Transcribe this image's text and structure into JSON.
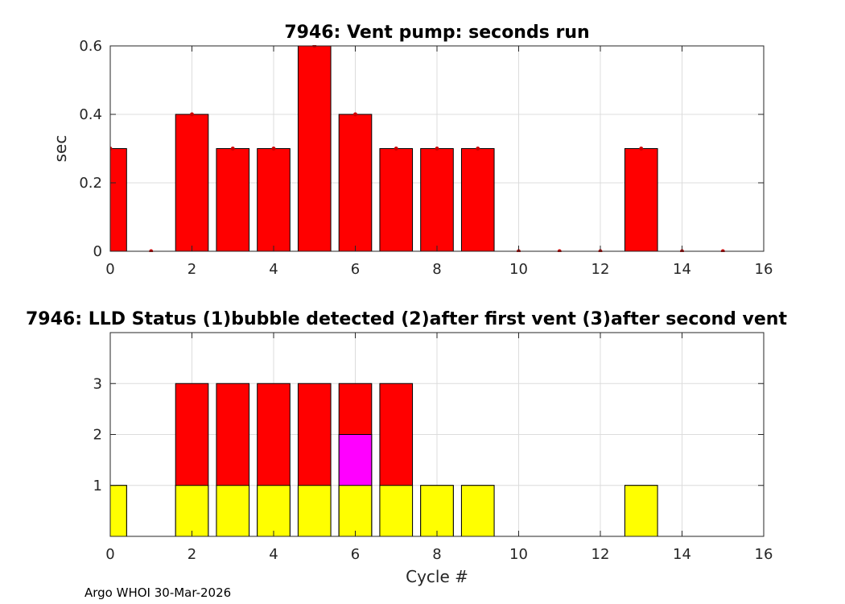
{
  "footer": "Argo WHOI 30-Mar-2026",
  "chart_data": [
    {
      "type": "bar",
      "title": "7946: Vent pump: seconds run",
      "xlabel": "",
      "ylabel": "sec",
      "xlim": [
        0,
        16
      ],
      "ylim": [
        0,
        0.6
      ],
      "xticks": [
        0,
        2,
        4,
        6,
        8,
        10,
        12,
        14,
        16
      ],
      "yticks": [
        0,
        0.2,
        0.4,
        0.6
      ],
      "ytick_labels": [
        "0",
        "0.2",
        "0.4",
        "0.6"
      ],
      "grid": true,
      "bar_color": "#ff0000",
      "marker_color": "#cc0000",
      "x": [
        0,
        1,
        2,
        3,
        4,
        5,
        6,
        7,
        8,
        9,
        10,
        11,
        12,
        13,
        14,
        15
      ],
      "values": [
        0.3,
        0,
        0.4,
        0.3,
        0.3,
        0.6,
        0.4,
        0.3,
        0.3,
        0.3,
        0,
        0,
        0,
        0.3,
        0,
        0
      ]
    },
    {
      "type": "bar",
      "title": "7946: LLD Status   (1)bubble detected   (2)after first vent  (3)after second vent",
      "xlabel": "Cycle #",
      "ylabel": "",
      "xlim": [
        0,
        16
      ],
      "ylim": [
        0,
        4
      ],
      "xticks": [
        0,
        2,
        4,
        6,
        8,
        10,
        12,
        14,
        16
      ],
      "yticks": [
        1,
        2,
        3
      ],
      "grid": true,
      "x": [
        0,
        1,
        2,
        3,
        4,
        5,
        6,
        7,
        8,
        9,
        10,
        11,
        12,
        13,
        14,
        15
      ],
      "values": [
        1,
        0,
        3,
        3,
        3,
        3,
        3,
        3,
        1,
        1,
        0,
        0,
        0,
        1,
        0,
        0
      ],
      "overlay_values": [
        0,
        0,
        0,
        0,
        0,
        0,
        2,
        0,
        0,
        0,
        0,
        0,
        0,
        0,
        0,
        0
      ],
      "colors": {
        "level1": "#ffff00",
        "level2": "#ff00ff",
        "level3": "#ff0000"
      }
    }
  ]
}
